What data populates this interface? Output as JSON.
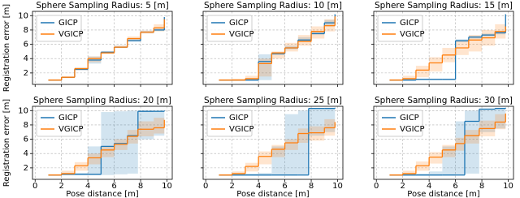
{
  "chart_data": [
    {
      "type": "step",
      "title": "Sphere Sampling Radius: 5 [m]",
      "ylabel": "Registration error [m]",
      "x": [
        1,
        2,
        3,
        4,
        5,
        6,
        7,
        8,
        9,
        9.8
      ],
      "xlim": [
        -0.2,
        10.4
      ],
      "ylim": [
        0.4,
        10.6
      ],
      "xticks": [
        0,
        2,
        4,
        6,
        8,
        10
      ],
      "yticks": [
        2,
        4,
        6,
        8,
        10
      ],
      "grid": true,
      "legend": "upper left",
      "series": [
        {
          "name": "GICP",
          "color": "#1f77b4",
          "values": [
            1.0,
            1.4,
            2.5,
            3.8,
            4.9,
            5.6,
            6.5,
            7.7,
            8.0,
            9.8
          ],
          "lower": [
            0.9,
            1.3,
            2.4,
            3.3,
            4.7,
            5.5,
            6.4,
            7.6,
            7.9,
            9.6
          ],
          "upper": [
            1.1,
            1.5,
            2.7,
            4.3,
            5.0,
            5.8,
            6.8,
            7.9,
            8.2,
            9.9
          ]
        },
        {
          "name": "VGICP",
          "color": "#ff7f0e",
          "values": [
            1.0,
            1.4,
            2.6,
            4.0,
            4.8,
            5.6,
            6.8,
            7.7,
            8.3,
            9.5
          ],
          "lower": [
            0.9,
            1.3,
            2.4,
            3.5,
            4.7,
            5.5,
            6.5,
            7.5,
            7.8,
            8.3
          ],
          "upper": [
            1.1,
            1.5,
            2.8,
            4.3,
            5.0,
            5.8,
            7.1,
            7.9,
            8.8,
            9.7
          ]
        }
      ]
    },
    {
      "type": "step",
      "title": "Sphere Sampling Radius: 10 [m]",
      "x": [
        1,
        2,
        3,
        4,
        5,
        6,
        7,
        8,
        9,
        9.8
      ],
      "xlim": [
        -0.2,
        10.4
      ],
      "ylim": [
        0.4,
        10.6
      ],
      "xticks": [
        0,
        2,
        4,
        6,
        8,
        10
      ],
      "yticks": [
        2,
        4,
        6,
        8,
        10
      ],
      "grid": true,
      "legend": "upper left",
      "series": [
        {
          "name": "GICP",
          "color": "#1f77b4",
          "values": [
            1.0,
            1.0,
            1.0,
            3.6,
            4.7,
            5.5,
            6.6,
            7.5,
            9.0,
            10.2
          ],
          "lower": [
            0.9,
            0.9,
            0.9,
            1.0,
            4.5,
            5.3,
            6.4,
            7.3,
            8.5,
            9.8
          ],
          "upper": [
            1.1,
            1.1,
            1.2,
            4.6,
            4.9,
            5.8,
            7.0,
            7.8,
            9.4,
            10.3
          ]
        },
        {
          "name": "VGICP",
          "color": "#ff7f0e",
          "values": [
            1.0,
            1.0,
            1.2,
            3.3,
            4.8,
            5.5,
            6.4,
            7.8,
            8.6,
            9.9
          ],
          "lower": [
            0.9,
            0.9,
            1.0,
            1.5,
            4.0,
            5.0,
            5.8,
            6.8,
            7.8,
            8.3
          ],
          "upper": [
            1.1,
            1.2,
            1.6,
            4.0,
            5.0,
            6.2,
            7.3,
            8.5,
            9.5,
            10.0
          ]
        }
      ]
    },
    {
      "type": "step",
      "title": "Sphere Sampling Radius: 15 [m]",
      "x": [
        1,
        2,
        3,
        4,
        5,
        6,
        7,
        8,
        9,
        9.8
      ],
      "xlim": [
        -0.2,
        10.4
      ],
      "ylim": [
        0.4,
        10.6
      ],
      "xticks": [
        0,
        2,
        4,
        6,
        8,
        10
      ],
      "yticks": [
        2,
        4,
        6,
        8,
        10
      ],
      "grid": true,
      "legend": "upper left",
      "series": [
        {
          "name": "GICP",
          "color": "#1f77b4",
          "values": [
            1.0,
            1.0,
            1.1,
            1.1,
            1.1,
            6.5,
            7.0,
            7.3,
            7.6,
            10.2
          ],
          "lower": [
            0.9,
            0.9,
            1.0,
            1.0,
            1.0,
            6.3,
            6.8,
            7.1,
            7.4,
            10.0
          ],
          "upper": [
            1.1,
            1.1,
            1.2,
            1.2,
            1.2,
            6.7,
            7.2,
            7.5,
            7.8,
            10.3
          ]
        },
        {
          "name": "VGICP",
          "color": "#ff7f0e",
          "values": [
            1.0,
            1.2,
            2.4,
            3.4,
            4.5,
            5.5,
            6.6,
            6.9,
            7.8,
            8.5
          ],
          "lower": [
            0.9,
            1.0,
            1.4,
            2.2,
            3.5,
            4.5,
            5.0,
            5.8,
            6.8,
            7.5
          ],
          "upper": [
            1.1,
            1.6,
            3.0,
            4.2,
            5.5,
            6.5,
            7.3,
            8.0,
            8.8,
            9.2
          ]
        }
      ]
    },
    {
      "type": "step",
      "title": "Sphere Sampling Radius: 20 [m]",
      "ylabel": "Registration error [m]",
      "xlabel": "Pose distance [m]",
      "x": [
        1,
        2,
        3,
        4,
        5,
        6,
        7,
        7.8,
        9,
        9.8
      ],
      "xlim": [
        -0.2,
        10.4
      ],
      "ylim": [
        0.4,
        10.6
      ],
      "xticks": [
        0,
        2,
        4,
        6,
        8,
        10
      ],
      "yticks": [
        2,
        4,
        6,
        8,
        10
      ],
      "grid": true,
      "legend": "upper left",
      "series": [
        {
          "name": "GICP",
          "color": "#1f77b4",
          "values": [
            1.0,
            1.1,
            1.1,
            1.1,
            5.0,
            5.4,
            6.5,
            9.9,
            9.9,
            10.0
          ],
          "lower": [
            0.9,
            1.0,
            1.0,
            1.0,
            1.0,
            1.1,
            1.2,
            6.0,
            6.5,
            7.0
          ],
          "upper": [
            1.1,
            1.2,
            1.3,
            5.0,
            9.8,
            9.9,
            10.0,
            10.0,
            10.0,
            10.1
          ]
        },
        {
          "name": "VGICP",
          "color": "#ff7f0e",
          "values": [
            1.0,
            1.2,
            2.3,
            3.4,
            4.5,
            5.3,
            6.4,
            7.4,
            7.6,
            8.7
          ],
          "lower": [
            0.9,
            1.0,
            1.6,
            2.5,
            3.5,
            4.5,
            5.4,
            6.4,
            6.8,
            7.5
          ],
          "upper": [
            1.1,
            1.6,
            2.8,
            4.0,
            5.0,
            6.0,
            7.3,
            8.5,
            9.0,
            9.3
          ]
        }
      ]
    },
    {
      "type": "step",
      "title": "Sphere Sampling Radius: 25 [m]",
      "xlabel": "Pose distance [m]",
      "x": [
        1,
        2,
        3,
        4,
        5,
        6,
        7,
        7.8,
        9,
        9.8
      ],
      "xlim": [
        -0.2,
        10.4
      ],
      "ylim": [
        0.4,
        10.6
      ],
      "xticks": [
        0,
        2,
        4,
        6,
        8,
        10
      ],
      "yticks": [
        2,
        4,
        6,
        8,
        10
      ],
      "grid": true,
      "legend": "upper left",
      "series": [
        {
          "name": "GICP",
          "color": "#1f77b4",
          "values": [
            1.0,
            1.0,
            1.0,
            1.0,
            1.0,
            1.0,
            1.0,
            10.3,
            10.3,
            10.4
          ],
          "lower": [
            0.9,
            0.9,
            0.9,
            0.9,
            1.0,
            1.0,
            1.0,
            6.5,
            7.0,
            7.5
          ],
          "upper": [
            1.1,
            1.1,
            1.2,
            1.3,
            5.0,
            9.5,
            10.0,
            10.3,
            10.4,
            10.4
          ]
        },
        {
          "name": "VGICP",
          "color": "#ff7f0e",
          "values": [
            1.0,
            1.2,
            2.2,
            3.6,
            4.6,
            5.5,
            6.8,
            6.9,
            7.6,
            8.4
          ],
          "lower": [
            0.9,
            1.0,
            1.5,
            2.5,
            3.5,
            4.5,
            5.5,
            5.8,
            6.5,
            7.2
          ],
          "upper": [
            1.1,
            1.5,
            2.7,
            4.3,
            5.2,
            6.0,
            7.5,
            7.8,
            8.8,
            9.2
          ]
        }
      ]
    },
    {
      "type": "step",
      "title": "Sphere Sampling Radius: 30 [m]",
      "xlabel": "Pose distance [m]",
      "x": [
        1,
        2,
        3,
        4,
        5,
        6,
        6.7,
        7.8,
        9,
        9.8
      ],
      "xlim": [
        -0.2,
        10.4
      ],
      "ylim": [
        0.4,
        10.6
      ],
      "xticks": [
        0,
        2,
        4,
        6,
        8,
        10
      ],
      "yticks": [
        2,
        4,
        6,
        8,
        10
      ],
      "grid": true,
      "legend": "upper left",
      "series": [
        {
          "name": "GICP",
          "color": "#1f77b4",
          "values": [
            1.0,
            1.0,
            1.0,
            1.0,
            1.0,
            1.0,
            8.5,
            10.2,
            10.3,
            10.4
          ],
          "lower": [
            0.9,
            0.9,
            0.9,
            0.9,
            1.0,
            1.0,
            1.2,
            7.0,
            7.5,
            8.0
          ],
          "upper": [
            1.1,
            1.1,
            1.2,
            1.5,
            5.0,
            8.5,
            10.0,
            10.3,
            10.4,
            10.4
          ]
        },
        {
          "name": "VGICP",
          "color": "#ff7f0e",
          "values": [
            1.0,
            1.2,
            2.3,
            3.5,
            4.5,
            5.4,
            6.5,
            7.5,
            8.4,
            9.6
          ],
          "lower": [
            0.9,
            1.0,
            1.6,
            2.6,
            3.5,
            4.4,
            5.4,
            6.4,
            7.4,
            8.4
          ],
          "upper": [
            1.1,
            1.6,
            2.9,
            4.2,
            5.2,
            6.2,
            7.3,
            8.6,
            9.5,
            9.9
          ]
        }
      ]
    }
  ]
}
